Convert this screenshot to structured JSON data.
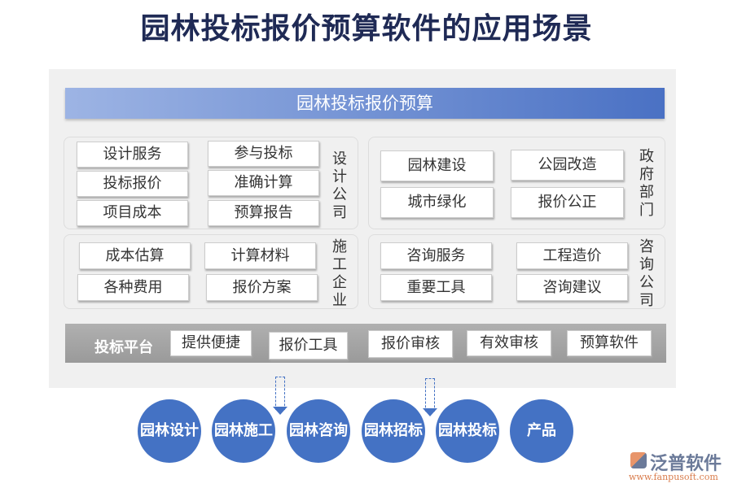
{
  "title": "园林投标报价预算软件的应用场景",
  "header": "园林投标报价预算",
  "groups": {
    "design": {
      "label": "设计公司",
      "items": [
        "设计服务",
        "参与投标",
        "投标报价",
        "准确计算",
        "项目成本",
        "预算报告"
      ]
    },
    "government": {
      "label": "政府部门",
      "items": [
        "园林建设",
        "公园改造",
        "城市绿化",
        "报价公正"
      ]
    },
    "construction": {
      "label": "施工企业",
      "items": [
        "成本估算",
        "计算材料",
        "各种费用",
        "报价方案"
      ]
    },
    "consulting": {
      "label": "咨询公司",
      "items": [
        "咨询服务",
        "工程造价",
        "重要工具",
        "咨询建议"
      ]
    }
  },
  "platform": {
    "label": "投标平台",
    "items": [
      "提供便捷",
      "报价工具",
      "报价审核",
      "有效审核",
      "预算软件"
    ]
  },
  "circles": [
    [
      "园林",
      "设计"
    ],
    [
      "园林",
      "施工"
    ],
    [
      "园林",
      "咨询"
    ],
    [
      "园林",
      "招标"
    ],
    [
      "园林",
      "投标"
    ],
    [
      "产品"
    ]
  ],
  "logo": {
    "name": "泛普软件",
    "url": "www.fanpusoft.com"
  },
  "colors": {
    "accent": "#4472c4",
    "title": "#1f2a55"
  }
}
